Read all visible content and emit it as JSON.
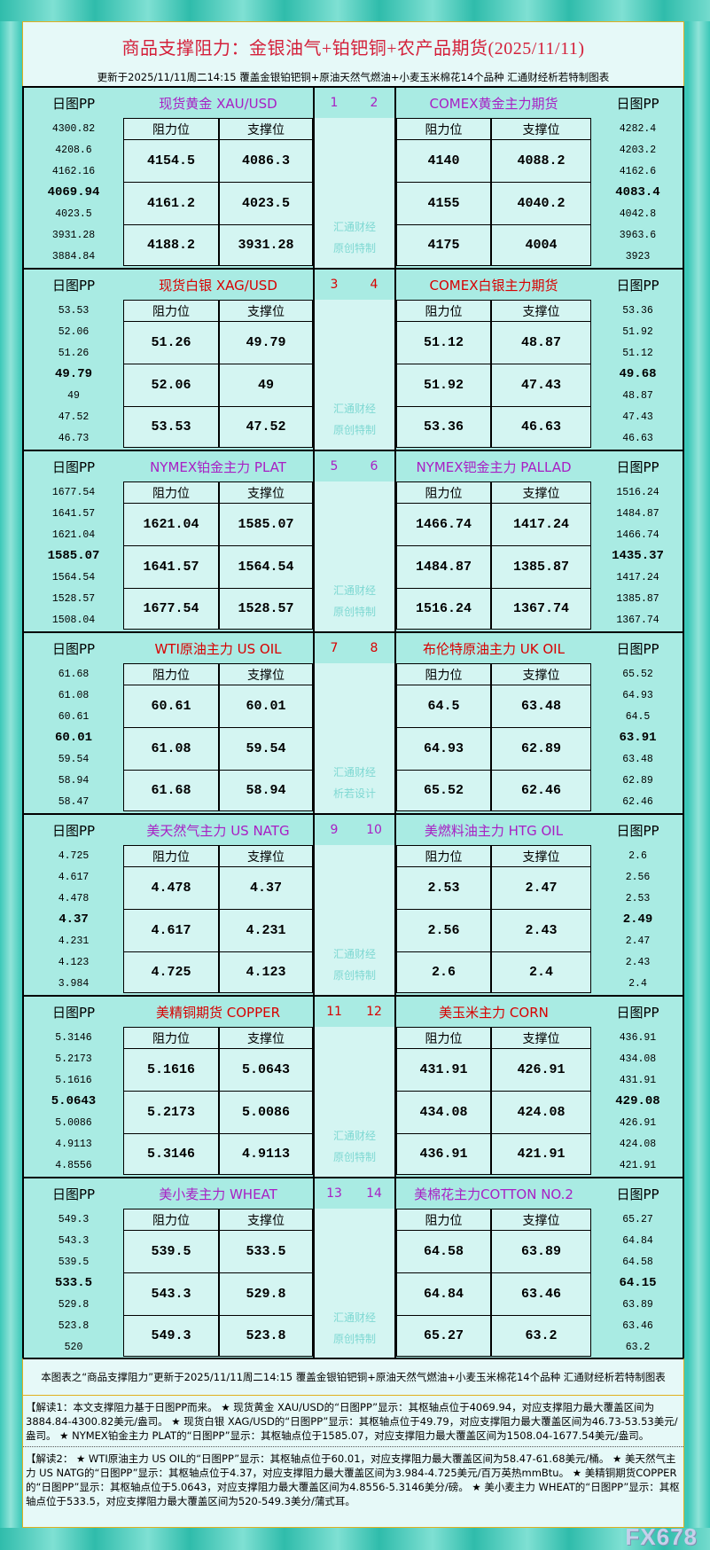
{
  "header": {
    "title": "商品支撑阻力：金银油气+铂钯铜+农产品期货(2025/11/11)",
    "subtitle": "更新于2025/11/11周二14:15  覆盖金银铂钯铜+原油天然气燃油+小麦玉米棉花14个品种  汇通财经析若特制图表"
  },
  "labels": {
    "pp": "日图PP",
    "resistance": "阻力位",
    "support": "支撑位"
  },
  "colors": {
    "purple": "#a81fc4",
    "red": "#d80000"
  },
  "sections": [
    {
      "watermark": [
        "汇通财经",
        "原创特制"
      ],
      "color": "purple",
      "left": {
        "num": "1",
        "title": "现货黄金  XAU/USD",
        "pp": [
          "4300.82",
          "4208.6",
          "4162.16",
          "4069.94",
          "4023.5",
          "3931.28",
          "3884.84"
        ],
        "res": [
          "4154.5",
          "4161.2",
          "4188.2"
        ],
        "sup": [
          "4086.3",
          "4023.5",
          "3931.28"
        ]
      },
      "right": {
        "num": "2",
        "title": "COMEX黄金主力期货",
        "pp": [
          "4282.4",
          "4203.2",
          "4162.6",
          "4083.4",
          "4042.8",
          "3963.6",
          "3923"
        ],
        "res": [
          "4140",
          "4155",
          "4175"
        ],
        "sup": [
          "4088.2",
          "4040.2",
          "4004"
        ]
      }
    },
    {
      "watermark": [
        "汇通财经",
        "原创特制"
      ],
      "color": "red",
      "left": {
        "num": "3",
        "title": "现货白银  XAG/USD",
        "pp": [
          "53.53",
          "52.06",
          "51.26",
          "49.79",
          "49",
          "47.52",
          "46.73"
        ],
        "res": [
          "51.26",
          "52.06",
          "53.53"
        ],
        "sup": [
          "49.79",
          "49",
          "47.52"
        ]
      },
      "right": {
        "num": "4",
        "title": "COMEX白银主力期货",
        "pp": [
          "53.36",
          "51.92",
          "51.12",
          "49.68",
          "48.87",
          "47.43",
          "46.63"
        ],
        "res": [
          "51.12",
          "51.92",
          "53.36"
        ],
        "sup": [
          "48.87",
          "47.43",
          "46.63"
        ]
      }
    },
    {
      "watermark": [
        "汇通财经",
        "原创特制"
      ],
      "color": "purple",
      "left": {
        "num": "5",
        "title": "NYMEX铂金主力  PLAT",
        "pp": [
          "1677.54",
          "1641.57",
          "1621.04",
          "1585.07",
          "1564.54",
          "1528.57",
          "1508.04"
        ],
        "res": [
          "1621.04",
          "1641.57",
          "1677.54"
        ],
        "sup": [
          "1585.07",
          "1564.54",
          "1528.57"
        ]
      },
      "right": {
        "num": "6",
        "title": "NYMEX钯金主力  PALLAD",
        "pp": [
          "1516.24",
          "1484.87",
          "1466.74",
          "1435.37",
          "1417.24",
          "1385.87",
          "1367.74"
        ],
        "res": [
          "1466.74",
          "1484.87",
          "1516.24"
        ],
        "sup": [
          "1417.24",
          "1385.87",
          "1367.74"
        ]
      }
    },
    {
      "watermark": [
        "汇通财经",
        "析若设计"
      ],
      "color": "red",
      "left": {
        "num": "7",
        "title": "WTI原油主力  US OIL",
        "pp": [
          "61.68",
          "61.08",
          "60.61",
          "60.01",
          "59.54",
          "58.94",
          "58.47"
        ],
        "res": [
          "60.61",
          "61.08",
          "61.68"
        ],
        "sup": [
          "60.01",
          "59.54",
          "58.94"
        ]
      },
      "right": {
        "num": "8",
        "title": "布伦特原油主力  UK OIL",
        "pp": [
          "65.52",
          "64.93",
          "64.5",
          "63.91",
          "63.48",
          "62.89",
          "62.46"
        ],
        "res": [
          "64.5",
          "64.93",
          "65.52"
        ],
        "sup": [
          "63.48",
          "62.89",
          "62.46"
        ]
      }
    },
    {
      "watermark": [
        "汇通财经",
        "原创特制"
      ],
      "color": "purple",
      "left": {
        "num": "9",
        "title": "美天然气主力  US NATG",
        "pp": [
          "4.725",
          "4.617",
          "4.478",
          "4.37",
          "4.231",
          "4.123",
          "3.984"
        ],
        "res": [
          "4.478",
          "4.617",
          "4.725"
        ],
        "sup": [
          "4.37",
          "4.231",
          "4.123"
        ]
      },
      "right": {
        "num": "10",
        "title": "美燃料油主力  HTG OIL",
        "pp": [
          "2.6",
          "2.56",
          "2.53",
          "2.49",
          "2.47",
          "2.43",
          "2.4"
        ],
        "res": [
          "2.53",
          "2.56",
          "2.6"
        ],
        "sup": [
          "2.47",
          "2.43",
          "2.4"
        ]
      }
    },
    {
      "watermark": [
        "汇通财经",
        "原创特制"
      ],
      "color": "red",
      "left": {
        "num": "11",
        "title": "美精铜期货  COPPER",
        "pp": [
          "5.3146",
          "5.2173",
          "5.1616",
          "5.0643",
          "5.0086",
          "4.9113",
          "4.8556"
        ],
        "res": [
          "5.1616",
          "5.2173",
          "5.3146"
        ],
        "sup": [
          "5.0643",
          "5.0086",
          "4.9113"
        ]
      },
      "right": {
        "num": "12",
        "title": "美玉米主力  CORN",
        "pp": [
          "436.91",
          "434.08",
          "431.91",
          "429.08",
          "426.91",
          "424.08",
          "421.91"
        ],
        "res": [
          "431.91",
          "434.08",
          "436.91"
        ],
        "sup": [
          "426.91",
          "424.08",
          "421.91"
        ]
      }
    },
    {
      "watermark": [
        "汇通财经",
        "原创特制"
      ],
      "color": "purple",
      "left": {
        "num": "13",
        "title": "美小麦主力  WHEAT",
        "pp": [
          "549.3",
          "543.3",
          "539.5",
          "533.5",
          "529.8",
          "523.8",
          "520"
        ],
        "res": [
          "539.5",
          "543.3",
          "549.3"
        ],
        "sup": [
          "533.5",
          "529.8",
          "523.8"
        ]
      },
      "right": {
        "num": "14",
        "title": "美棉花主力COTTON  NO.2",
        "pp": [
          "65.27",
          "64.84",
          "64.58",
          "64.15",
          "63.89",
          "63.46",
          "63.2"
        ],
        "res": [
          "64.58",
          "64.84",
          "65.27"
        ],
        "sup": [
          "63.89",
          "63.46",
          "63.2"
        ]
      }
    }
  ],
  "footer": {
    "summary": "本图表之“商品支撑阻力”更新于2025/11/11周二14:15 覆盖金银铂钯铜+原油天然气燃油+小麦玉米棉花14个品种 汇通财经析若特制图表",
    "interpretation1": "【解读1：本文支撑阻力基于日图PP而来。 ★ 现货黄金 XAU/USD的“日图PP”显示：其枢轴点位于4069.94，对应支撑阻力最大覆盖区间为3884.84-4300.82美元/盎司。 ★ 现货白银 XAG/USD的“日图PP”显示：其枢轴点位于49.79，对应支撑阻力最大覆盖区间为46.73-53.53美元/盎司。 ★ NYMEX铂金主力 PLAT的“日图PP”显示：其枢轴点位于1585.07，对应支撑阻力最大覆盖区间为1508.04-1677.54美元/盎司。",
    "interpretation2": "【解读2： ★ WTI原油主力 US OIL的“日图PP”显示：其枢轴点位于60.01，对应支撑阻力最大覆盖区间为58.47-61.68美元/桶。 ★ 美天然气主力 US NATG的“日图PP”显示：其枢轴点位于4.37，对应支撑阻力最大覆盖区间为3.984-4.725美元/百万英热mmBtu。 ★ 美精铜期货COPPER的“日图PP”显示：其枢轴点位于5.0643，对应支撑阻力最大覆盖区间为4.8556-5.3146美分/磅。 ★ 美小麦主力 WHEAT的“日图PP”显示：其枢轴点位于533.5，对应支撑阻力最大覆盖区间为520-549.3美分/蒲式耳。",
    "watermark": "FX678"
  }
}
